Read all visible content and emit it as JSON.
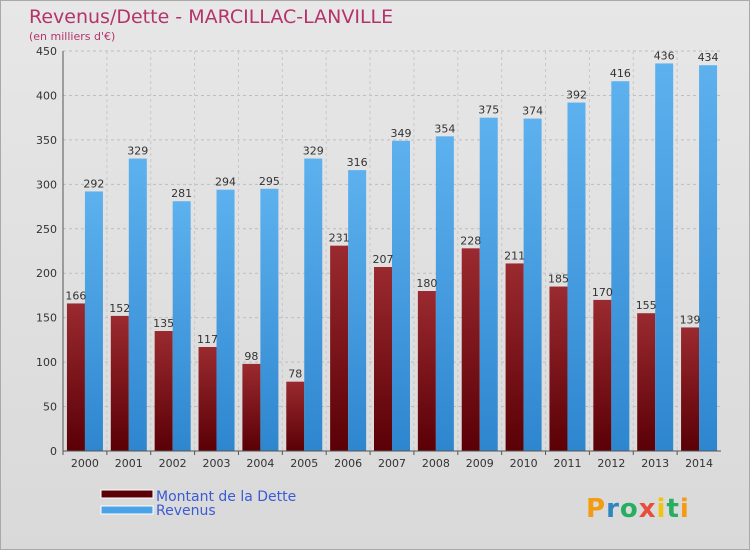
{
  "chart_data": {
    "type": "bar",
    "title": "Revenus/Dette - MARCILLAC-LANVILLE",
    "subtitle": "(en milliers d'€)",
    "categories": [
      "2000",
      "2001",
      "2002",
      "2003",
      "2004",
      "2005",
      "2006",
      "2007",
      "2008",
      "2009",
      "2010",
      "2011",
      "2012",
      "2013",
      "2014"
    ],
    "series": [
      {
        "name": "Montant de la Dette",
        "color": "#8b1a1f",
        "values": [
          166,
          152,
          135,
          117,
          98,
          78,
          231,
          207,
          180,
          228,
          211,
          185,
          170,
          155,
          139
        ]
      },
      {
        "name": "Revenus",
        "color": "#4aa3e6",
        "values": [
          292,
          329,
          281,
          294,
          295,
          329,
          316,
          349,
          354,
          375,
          374,
          392,
          416,
          436,
          434
        ]
      }
    ],
    "ylim": [
      0,
      450
    ],
    "yticks": [
      0,
      50,
      100,
      150,
      200,
      250,
      300,
      350,
      400,
      450
    ],
    "grid": true,
    "legend_placement": "bottom-left"
  },
  "logo": {
    "letters": [
      "P",
      "r",
      "o",
      "x",
      "i",
      "t",
      "i"
    ],
    "colors": [
      "#f39c12",
      "#2e86c1",
      "#27ae60",
      "#e74c3c",
      "#f1c40f",
      "#27ae60",
      "#f39c12"
    ]
  }
}
